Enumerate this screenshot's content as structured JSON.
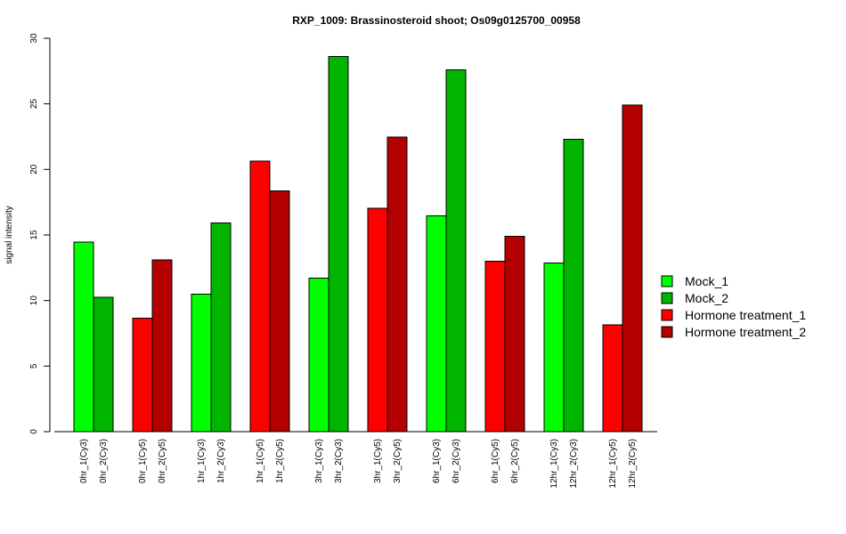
{
  "chart_data": {
    "type": "bar",
    "title": "RXP_1009: Brassinosteroid shoot; Os09g0125700_00958",
    "ylabel": "signal intensity",
    "xlabel": "",
    "ylim": [
      0,
      30
    ],
    "yticks": [
      0,
      5,
      10,
      15,
      20,
      25,
      30
    ],
    "legend_position": "right",
    "grid": false,
    "legend": [
      {
        "label": "Mock_1",
        "color": "#00ff00"
      },
      {
        "label": "Mock_2",
        "color": "#00b400"
      },
      {
        "label": "Hormone treatment_1",
        "color": "#ff0000"
      },
      {
        "label": "Hormone treatment_2",
        "color": "#b30000"
      }
    ],
    "groups": [
      {
        "bars": [
          {
            "label": "0hr_1(Cy3)",
            "value": 14.45,
            "color": "#00ff00"
          },
          {
            "label": "0hr_2(Cy3)",
            "value": 10.25,
            "color": "#00b400"
          }
        ]
      },
      {
        "bars": [
          {
            "label": "0hr_1(Cy5)",
            "value": 8.65,
            "color": "#ff0000"
          },
          {
            "label": "0hr_2(Cy5)",
            "value": 13.1,
            "color": "#b30000"
          }
        ]
      },
      {
        "bars": [
          {
            "label": "1hr_1(Cy3)",
            "value": 10.5,
            "color": "#00ff00"
          },
          {
            "label": "1hr_2(Cy3)",
            "value": 15.9,
            "color": "#00b400"
          }
        ]
      },
      {
        "bars": [
          {
            "label": "1hr_1(Cy5)",
            "value": 20.65,
            "color": "#ff0000"
          },
          {
            "label": "1hr_2(Cy5)",
            "value": 18.35,
            "color": "#b30000"
          }
        ]
      },
      {
        "bars": [
          {
            "label": "3hr_1(Cy3)",
            "value": 11.7,
            "color": "#00ff00"
          },
          {
            "label": "3hr_2(Cy3)",
            "value": 28.6,
            "color": "#00b400"
          }
        ]
      },
      {
        "bars": [
          {
            "label": "3hr_1(Cy5)",
            "value": 17.05,
            "color": "#ff0000"
          },
          {
            "label": "3hr_2(Cy5)",
            "value": 22.45,
            "color": "#b30000"
          }
        ]
      },
      {
        "bars": [
          {
            "label": "6hr_1(Cy3)",
            "value": 16.45,
            "color": "#00ff00"
          },
          {
            "label": "6hr_2(Cy3)",
            "value": 27.6,
            "color": "#00b400"
          }
        ]
      },
      {
        "bars": [
          {
            "label": "6hr_1(Cy5)",
            "value": 13.0,
            "color": "#ff0000"
          },
          {
            "label": "6hr_2(Cy5)",
            "value": 14.9,
            "color": "#b30000"
          }
        ]
      },
      {
        "bars": [
          {
            "label": "12hr_1(Cy3)",
            "value": 12.85,
            "color": "#00ff00"
          },
          {
            "label": "12hr_2(Cy3)",
            "value": 22.3,
            "color": "#00b400"
          }
        ]
      },
      {
        "bars": [
          {
            "label": "12hr_1(Cy5)",
            "value": 8.15,
            "color": "#ff0000"
          },
          {
            "label": "12hr_2(Cy5)",
            "value": 24.9,
            "color": "#b30000"
          }
        ]
      }
    ]
  }
}
